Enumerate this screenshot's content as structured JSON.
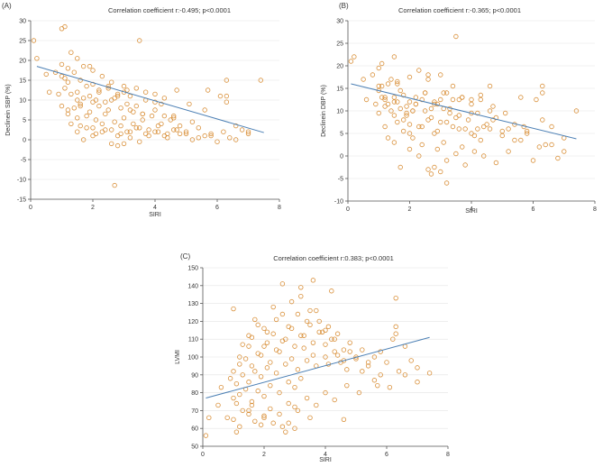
{
  "chart_data": [
    {
      "type": "scatter",
      "panel_label": "(A)",
      "title": "Correlation coefficient r:-0.495; p<0.0001",
      "xlabel": "SIRI",
      "ylabel": "Declinein SBP (%)",
      "xlim": [
        0,
        8
      ],
      "ylim": [
        -15,
        30
      ],
      "xticks": [
        0,
        2,
        4,
        6,
        8
      ],
      "yticks": [
        -15,
        -10,
        -5,
        0,
        5,
        10,
        15,
        20,
        25,
        30
      ],
      "trend": {
        "x": [
          0.2,
          7.5
        ],
        "y": [
          18.5,
          1.8
        ]
      },
      "points_x": [
        0.1,
        0.2,
        0.5,
        0.8,
        1.0,
        1.2,
        1.3,
        1.5,
        1.7,
        2.0,
        2.3,
        2.6,
        3.0,
        3.5,
        1.0,
        1.1,
        1.2,
        1.4,
        1.6,
        1.8,
        2.0,
        2.2,
        2.5,
        2.8,
        3.0,
        3.2,
        0.6,
        0.9,
        1.1,
        1.3,
        1.5,
        1.7,
        1.9,
        2.1,
        2.4,
        2.7,
        3.1,
        3.4,
        3.7,
        4.0,
        1.0,
        1.2,
        1.4,
        1.6,
        1.9,
        2.2,
        2.5,
        2.9,
        3.3,
        3.6,
        4.0,
        4.3,
        4.6,
        1.2,
        1.5,
        1.8,
        2.1,
        2.4,
        2.7,
        3.0,
        3.3,
        3.6,
        3.9,
        4.2,
        4.5,
        4.8,
        5.2,
        1.3,
        1.6,
        2.0,
        2.3,
        2.6,
        2.9,
        3.2,
        3.5,
        3.8,
        4.1,
        4.4,
        4.7,
        5.0,
        5.4,
        5.8,
        1.5,
        1.8,
        2.1,
        2.4,
        2.8,
        3.1,
        3.4,
        3.7,
        4.0,
        4.3,
        4.6,
        5.0,
        5.4,
        5.8,
        6.2,
        6.6,
        1.0,
        1.7,
        2.0,
        2.3,
        2.6,
        2.9,
        3.2,
        3.5,
        3.8,
        4.1,
        4.4,
        4.8,
        5.2,
        5.6,
        6.0,
        6.4,
        6.8,
        7.0,
        1.5,
        2.2,
        2.5,
        2.8,
        3.1,
        3.4,
        3.7,
        4.0,
        4.3,
        4.7,
        5.1,
        5.6,
        6.1,
        6.6,
        7.0,
        7.4,
        1.6,
        2.0,
        2.6,
        3.2,
        3.6,
        4.2,
        4.6,
        2.7,
        2.8,
        3.0,
        6.3,
        6.3,
        6.3,
        5.7,
        1.9,
        1.1
      ],
      "points_y": [
        25.0,
        20.5,
        16.5,
        17.0,
        19.0,
        18.0,
        22.0,
        20.5,
        18.5,
        17.5,
        16.0,
        14.5,
        13.5,
        25.0,
        16.0,
        15.5,
        14.5,
        17.0,
        15.0,
        13.5,
        14.0,
        12.5,
        13.0,
        11.5,
        12.0,
        11.0,
        12.0,
        11.5,
        13.0,
        11.5,
        12.0,
        10.5,
        11.0,
        10.0,
        9.5,
        10.5,
        9.0,
        8.5,
        10.0,
        9.5,
        8.5,
        7.5,
        8.0,
        9.0,
        7.0,
        8.5,
        7.5,
        8.0,
        7.0,
        6.5,
        7.5,
        6.0,
        5.5,
        6.5,
        5.5,
        6.0,
        5.0,
        6.5,
        4.5,
        5.5,
        4.0,
        5.0,
        6.0,
        4.0,
        5.0,
        3.5,
        4.5,
        4.0,
        3.5,
        3.0,
        4.0,
        2.5,
        3.5,
        2.0,
        3.0,
        2.5,
        3.5,
        1.5,
        2.5,
        2.0,
        3.0,
        1.5,
        2.0,
        3.0,
        1.5,
        2.5,
        1.0,
        2.0,
        3.0,
        1.5,
        2.0,
        1.0,
        2.5,
        1.5,
        0.5,
        1.0,
        2.0,
        0.0,
        28.0,
        0.0,
        1.0,
        2.0,
        -1.0,
        1.5,
        0.5,
        -0.5,
        1.0,
        2.0,
        0.5,
        1.5,
        0.0,
        1.0,
        -0.5,
        0.5,
        2.5,
        1.5,
        10.0,
        12.0,
        13.5,
        11.0,
        12.5,
        13.0,
        12.0,
        11.5,
        10.5,
        12.5,
        9.0,
        7.5,
        11.0,
        3.5,
        2.0,
        15.0,
        8.5,
        9.5,
        10.0,
        7.5,
        6.5,
        9.0,
        6.0,
        -11.5,
        -1.5,
        -1.0,
        11.0,
        15.0,
        9.5,
        12.5,
        18.5,
        28.5
      ]
    },
    {
      "type": "scatter",
      "panel_label": "(B)",
      "title": "Correlation coefficient r:-0.365; p<0.0001",
      "xlabel": "SIRI",
      "ylabel": "Declinein DBP (%)",
      "xlim": [
        0,
        8
      ],
      "ylim": [
        -10,
        30
      ],
      "xticks": [
        0,
        2,
        4,
        6,
        8
      ],
      "yticks": [
        -10,
        -5,
        0,
        5,
        10,
        15,
        20,
        25,
        30
      ],
      "trend": {
        "x": [
          0.1,
          7.4
        ],
        "y": [
          16.0,
          3.8
        ]
      },
      "points_x": [
        0.1,
        0.2,
        0.5,
        0.8,
        1.0,
        1.2,
        1.3,
        1.5,
        1.7,
        2.0,
        2.3,
        2.6,
        3.0,
        3.5,
        1.0,
        1.1,
        1.2,
        1.4,
        1.6,
        1.8,
        2.0,
        2.2,
        2.5,
        2.8,
        3.0,
        3.2,
        0.6,
        0.9,
        1.1,
        1.3,
        1.5,
        1.7,
        1.9,
        2.1,
        2.4,
        2.7,
        3.1,
        3.4,
        3.7,
        4.0,
        1.0,
        1.2,
        1.4,
        1.6,
        1.9,
        2.2,
        2.5,
        2.9,
        3.3,
        3.6,
        4.0,
        4.3,
        4.6,
        1.2,
        1.5,
        1.8,
        2.1,
        2.4,
        2.7,
        3.0,
        3.3,
        3.6,
        3.9,
        4.2,
        4.5,
        4.8,
        5.2,
        1.3,
        1.6,
        2.0,
        2.3,
        2.6,
        2.9,
        3.2,
        3.5,
        3.8,
        4.1,
        4.4,
        4.7,
        5.0,
        5.4,
        5.8,
        1.5,
        1.8,
        2.1,
        2.4,
        2.8,
        3.1,
        3.4,
        3.7,
        4.0,
        4.3,
        4.6,
        5.0,
        5.4,
        5.8,
        6.2,
        6.6,
        1.0,
        1.7,
        2.0,
        2.3,
        2.6,
        2.9,
        3.2,
        3.5,
        3.8,
        4.1,
        4.4,
        4.8,
        5.2,
        5.6,
        6.0,
        6.4,
        6.8,
        7.0,
        1.5,
        2.2,
        2.5,
        2.8,
        3.1,
        3.4,
        3.7,
        4.0,
        4.3,
        4.7,
        5.1,
        5.6,
        6.1,
        6.6,
        7.0,
        7.4,
        1.6,
        2.0,
        2.6,
        3.2,
        3.6,
        4.2,
        4.6,
        2.7,
        2.8,
        3.0,
        6.3,
        6.3,
        6.3,
        5.7,
        1.9,
        1.1
      ],
      "points_y": [
        21.0,
        22.0,
        17.0,
        18.0,
        19.5,
        13.0,
        16.0,
        22.0,
        14.5,
        17.5,
        19.0,
        17.0,
        18.0,
        26.5,
        14.5,
        15.5,
        12.5,
        17.0,
        16.0,
        13.5,
        12.0,
        13.0,
        14.0,
        11.5,
        12.5,
        14.0,
        12.5,
        11.5,
        13.0,
        11.5,
        12.0,
        10.5,
        11.0,
        10.0,
        12.5,
        10.5,
        14.0,
        12.5,
        13.0,
        9.5,
        9.5,
        11.0,
        10.0,
        12.0,
        9.5,
        11.5,
        10.0,
        11.5,
        10.5,
        9.0,
        11.5,
        12.5,
        10.0,
        6.5,
        9.0,
        8.0,
        10.0,
        6.5,
        8.5,
        7.5,
        9.5,
        6.0,
        8.0,
        9.5,
        7.0,
        8.5,
        6.0,
        4.0,
        7.5,
        5.0,
        6.5,
        8.0,
        5.5,
        7.5,
        8.5,
        6.0,
        4.5,
        6.5,
        8.0,
        5.5,
        7.0,
        5.5,
        3.0,
        5.5,
        4.0,
        2.5,
        5.0,
        3.0,
        6.5,
        2.0,
        5.0,
        3.5,
        6.0,
        4.5,
        3.5,
        5.0,
        2.0,
        2.5,
        15.5,
        -2.5,
        1.5,
        0.0,
        -3.0,
        1.5,
        -1.0,
        0.5,
        -2.0,
        1.0,
        0.0,
        -1.5,
        1.0,
        3.5,
        -1.0,
        2.5,
        -0.5,
        1.0,
        13.0,
        11.5,
        14.0,
        12.0,
        10.5,
        15.5,
        13.0,
        12.5,
        13.5,
        11.0,
        9.5,
        13.0,
        12.5,
        6.5,
        4.0,
        10.0,
        16.5,
        7.0,
        18.0,
        -6.0,
        12.5,
        6.0,
        15.5,
        -4.0,
        -2.5,
        -3.5,
        15.5,
        14.0,
        8.0,
        6.5,
        9.0,
        20.5
      ]
    },
    {
      "type": "scatter",
      "panel_label": "(C)",
      "title": "Correlation coefficient r:0.383; p<0.0001",
      "xlabel": "SIRI",
      "ylabel": "LVMI",
      "xlim": [
        0,
        8
      ],
      "ylim": [
        50,
        150
      ],
      "xticks": [
        0,
        2,
        4,
        6,
        8
      ],
      "yticks": [
        50,
        60,
        70,
        80,
        90,
        100,
        110,
        120,
        130,
        140,
        150
      ],
      "trend": {
        "x": [
          0.1,
          7.4
        ],
        "y": [
          77.0,
          111.0
        ]
      },
      "points_x": [
        0.1,
        0.2,
        0.5,
        0.8,
        1.0,
        1.2,
        1.3,
        1.5,
        1.7,
        2.0,
        2.3,
        2.6,
        3.0,
        3.5,
        1.0,
        1.1,
        1.2,
        1.4,
        1.6,
        1.8,
        2.0,
        2.2,
        2.5,
        2.8,
        3.0,
        3.2,
        0.6,
        0.9,
        1.1,
        1.3,
        1.5,
        1.7,
        1.9,
        2.1,
        2.4,
        2.7,
        3.1,
        3.4,
        3.7,
        4.0,
        1.0,
        1.2,
        1.4,
        1.6,
        1.9,
        2.2,
        2.5,
        2.9,
        3.3,
        3.6,
        4.0,
        4.3,
        4.6,
        1.2,
        1.5,
        1.8,
        2.1,
        2.4,
        2.7,
        3.0,
        3.3,
        3.6,
        3.9,
        4.2,
        4.5,
        4.8,
        5.2,
        1.3,
        1.6,
        2.0,
        2.3,
        2.6,
        2.9,
        3.2,
        3.5,
        3.8,
        4.1,
        4.4,
        4.7,
        5.0,
        5.4,
        5.8,
        1.5,
        1.8,
        2.1,
        2.4,
        2.8,
        3.1,
        3.4,
        3.7,
        4.0,
        4.3,
        4.6,
        5.0,
        5.4,
        5.8,
        6.2,
        6.6,
        1.0,
        1.7,
        2.0,
        2.3,
        2.6,
        2.9,
        3.2,
        3.5,
        3.8,
        4.1,
        4.4,
        4.8,
        5.2,
        5.6,
        6.0,
        6.4,
        6.8,
        7.0,
        1.5,
        2.2,
        2.5,
        2.8,
        3.1,
        3.4,
        3.7,
        4.0,
        4.3,
        4.7,
        5.1,
        5.6,
        6.1,
        6.6,
        7.0,
        7.4,
        1.6,
        2.0,
        2.6,
        3.2,
        3.6,
        4.2,
        4.6,
        2.7,
        2.8,
        3.0,
        6.3,
        6.3,
        6.3,
        5.7,
        1.9,
        1.1
      ],
      "points_y": [
        56.0,
        66.0,
        73.0,
        66.0,
        65.0,
        61.0,
        70.0,
        68.0,
        64.0,
        66.0,
        63.0,
        61.0,
        72.0,
        66.0,
        77.0,
        74.0,
        79.0,
        82.0,
        75.0,
        81.0,
        78.0,
        84.0,
        80.0,
        86.0,
        83.0,
        88.0,
        83.0,
        88.0,
        85.0,
        90.0,
        86.0,
        92.0,
        89.0,
        94.0,
        91.0,
        96.0,
        93.0,
        98.0,
        95.0,
        100.0,
        92.0,
        96.0,
        99.0,
        95.0,
        101.0,
        97.0,
        103.0,
        99.0,
        105.0,
        101.0,
        107.0,
        103.0,
        98.0,
        100.0,
        106.0,
        102.0,
        108.0,
        104.0,
        110.0,
        106.0,
        112.0,
        108.0,
        114.0,
        110.0,
        97.0,
        103.0,
        92.0,
        107.0,
        111.0,
        106.0,
        113.0,
        109.0,
        116.0,
        112.0,
        118.0,
        114.0,
        96.0,
        101.0,
        93.0,
        99.0,
        95.0,
        90.0,
        112.0,
        118.0,
        114.0,
        121.0,
        117.0,
        124.0,
        120.0,
        126.0,
        115.0,
        110.0,
        104.0,
        100.0,
        97.0,
        103.0,
        110.0,
        106.0,
        127.0,
        121.0,
        116.0,
        128.0,
        124.0,
        131.0,
        134.0,
        126.0,
        120.0,
        117.0,
        113.0,
        108.0,
        104.0,
        100.0,
        97.0,
        92.0,
        98.0,
        94.0,
        70.0,
        71.0,
        68.0,
        74.0,
        70.0,
        77.0,
        73.0,
        80.0,
        76.0,
        84.0,
        80.0,
        87.0,
        83.0,
        90.0,
        86.0,
        91.0,
        73.0,
        67.0,
        141.0,
        139.0,
        143.0,
        137.0,
        65.0,
        58.0,
        63.0,
        60.0,
        133.0,
        117.0,
        113.0,
        84.0,
        62.0,
        58.0
      ]
    }
  ]
}
